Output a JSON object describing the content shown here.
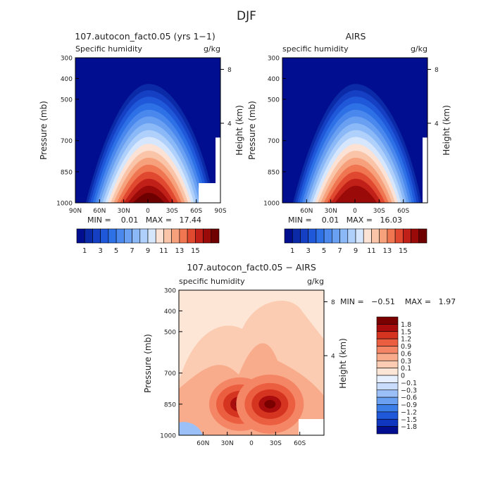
{
  "figure": {
    "title": "DJF"
  },
  "colors": {
    "blue_scale": [
      "#000e8f",
      "#0a2aa8",
      "#1540c4",
      "#1f58d8",
      "#2e70e6",
      "#4a88ee",
      "#6aa0f2",
      "#8bb8f6",
      "#aed0fa",
      "#d6e6fc",
      "#fbe2d4",
      "#f9c4a8",
      "#f6a07c",
      "#f07652",
      "#e04830",
      "#c02018",
      "#9a0a08",
      "#6e0000"
    ],
    "diff_scale": [
      "#000e8f",
      "#0f36bf",
      "#1f58d8",
      "#3c7ee8",
      "#6aa0f2",
      "#9bc0f8",
      "#c9dcfb",
      "#e6effd",
      "#fde6d6",
      "#fbccb2",
      "#f8ac8c",
      "#f48666",
      "#ec5e40",
      "#d43420",
      "#a80c0c",
      "#7a0000"
    ]
  },
  "panels": [
    {
      "key": "model",
      "title": "107.autocon_fact0.05 (yrs 1−1)",
      "left_label": "Specific humidity",
      "units": "g/kg",
      "ylabel": "Pressure (mb)",
      "ylabel2": "Height (km)",
      "stats": "MIN =    0.01   MAX =   17.44",
      "x_ticks": [
        "90N",
        "60N",
        "30N",
        "0",
        "30S",
        "60S",
        "90S"
      ],
      "y_ticks": [
        "300",
        "400",
        "500",
        "700",
        "850",
        "1000"
      ],
      "z_ticks": [
        "8",
        "4"
      ],
      "colorbar_ticks": [
        "1",
        "3",
        "5",
        "7",
        "9",
        "11",
        "13",
        "15"
      ],
      "peak": 17.44
    },
    {
      "key": "airs",
      "title": "AIRS",
      "left_label": "specific humidity",
      "units": "g/kg",
      "ylabel": "Pressure (mb)",
      "ylabel2": "Height (km)",
      "stats": "MIN =    0.01   MAX =   16.03",
      "x_ticks": [
        "60N",
        "30N",
        "0",
        "30S",
        "60S"
      ],
      "y_ticks": [
        "300",
        "400",
        "500",
        "700",
        "850",
        "1000"
      ],
      "z_ticks": [
        "8",
        "4"
      ],
      "colorbar_ticks": [
        "1",
        "3",
        "5",
        "7",
        "9",
        "11",
        "13",
        "15"
      ],
      "peak": 16.03
    },
    {
      "key": "diff",
      "title": "107.autocon_fact0.05 − AIRS",
      "left_label": "specific humidity",
      "units": "g/kg",
      "ylabel": "Pressure (mb)",
      "ylabel2": "Height (km)",
      "stats": "MIN =   −0.51    MAX =   1.97",
      "x_ticks": [
        "60N",
        "30N",
        "0",
        "30S",
        "60S"
      ],
      "y_ticks": [
        "300",
        "400",
        "500",
        "700",
        "850",
        "1000"
      ],
      "z_ticks": [
        "8",
        "4"
      ],
      "colorbar_ticks": [
        "1.8",
        "1.5",
        "1.2",
        "0.9",
        "0.6",
        "0.3",
        "0.1",
        "0",
        "−0.1",
        "−0.3",
        "−0.6",
        "−0.9",
        "−1.2",
        "−1.5",
        "−1.8"
      ]
    }
  ],
  "chart_data": [
    {
      "type": "heatmap",
      "title": "107.autocon_fact0.05 (yrs 1−1)",
      "subtitle": "Specific humidity",
      "units": "g/kg",
      "xlabel": "",
      "ylabel": "Pressure (mb)",
      "y2label": "Height (km)",
      "xlim": [
        90,
        -90
      ],
      "ylim": [
        1000,
        300
      ],
      "x_ticks": [
        "90N",
        "60N",
        "30N",
        "0",
        "30S",
        "60S",
        "90S"
      ],
      "y_ticks": [
        300,
        400,
        500,
        700,
        850,
        1000
      ],
      "z_ticks_km": [
        8,
        4
      ],
      "min": 0.01,
      "max": 17.44,
      "levels": [
        1,
        2,
        3,
        4,
        5,
        6,
        7,
        8,
        9,
        10,
        11,
        12,
        13,
        14,
        15,
        16,
        17
      ],
      "colorbar_labels": [
        1,
        3,
        5,
        7,
        9,
        11,
        13,
        15
      ],
      "missing_region": "near-surface Antarctic region (60S–90S, below ~900 mb)"
    },
    {
      "type": "heatmap",
      "title": "AIRS",
      "subtitle": "specific humidity",
      "units": "g/kg",
      "xlabel": "",
      "ylabel": "Pressure (mb)",
      "y2label": "Height (km)",
      "xlim": [
        90,
        -90
      ],
      "ylim": [
        1000,
        300
      ],
      "x_ticks": [
        "60N",
        "30N",
        "0",
        "30S",
        "60S"
      ],
      "y_ticks": [
        300,
        400,
        500,
        700,
        850,
        1000
      ],
      "z_ticks_km": [
        8,
        4
      ],
      "min": 0.01,
      "max": 16.03,
      "levels": [
        1,
        2,
        3,
        4,
        5,
        6,
        7,
        8,
        9,
        10,
        11,
        12,
        13,
        14,
        15,
        16,
        17
      ],
      "colorbar_labels": [
        1,
        3,
        5,
        7,
        9,
        11,
        13,
        15
      ]
    },
    {
      "type": "heatmap",
      "title": "107.autocon_fact0.05 − AIRS",
      "subtitle": "specific humidity",
      "units": "g/kg",
      "xlabel": "",
      "ylabel": "Pressure (mb)",
      "y2label": "Height (km)",
      "xlim": [
        90,
        -90
      ],
      "ylim": [
        1000,
        300
      ],
      "x_ticks": [
        "60N",
        "30N",
        "0",
        "30S",
        "60S"
      ],
      "y_ticks": [
        300,
        400,
        500,
        700,
        850,
        1000
      ],
      "z_ticks_km": [
        8,
        4
      ],
      "min": -0.51,
      "max": 1.97,
      "levels": [
        -1.8,
        -1.5,
        -1.2,
        -0.9,
        -0.6,
        -0.3,
        -0.1,
        0,
        0.1,
        0.3,
        0.6,
        0.9,
        1.2,
        1.5,
        1.8
      ],
      "colorbar_labels": [
        1.8,
        1.5,
        1.2,
        0.9,
        0.6,
        0.3,
        0.1,
        0,
        -0.1,
        -0.3,
        -0.6,
        -0.9,
        -1.2,
        -1.5,
        -1.8
      ],
      "features": [
        {
          "label": "positive maximum",
          "lat": 14,
          "pressure_mb": 850,
          "value_range": [
            1.5,
            1.97
          ]
        },
        {
          "label": "positive maximum",
          "lat": -23,
          "pressure_mb": 850,
          "value_range": [
            1.5,
            1.97
          ]
        }
      ]
    }
  ]
}
